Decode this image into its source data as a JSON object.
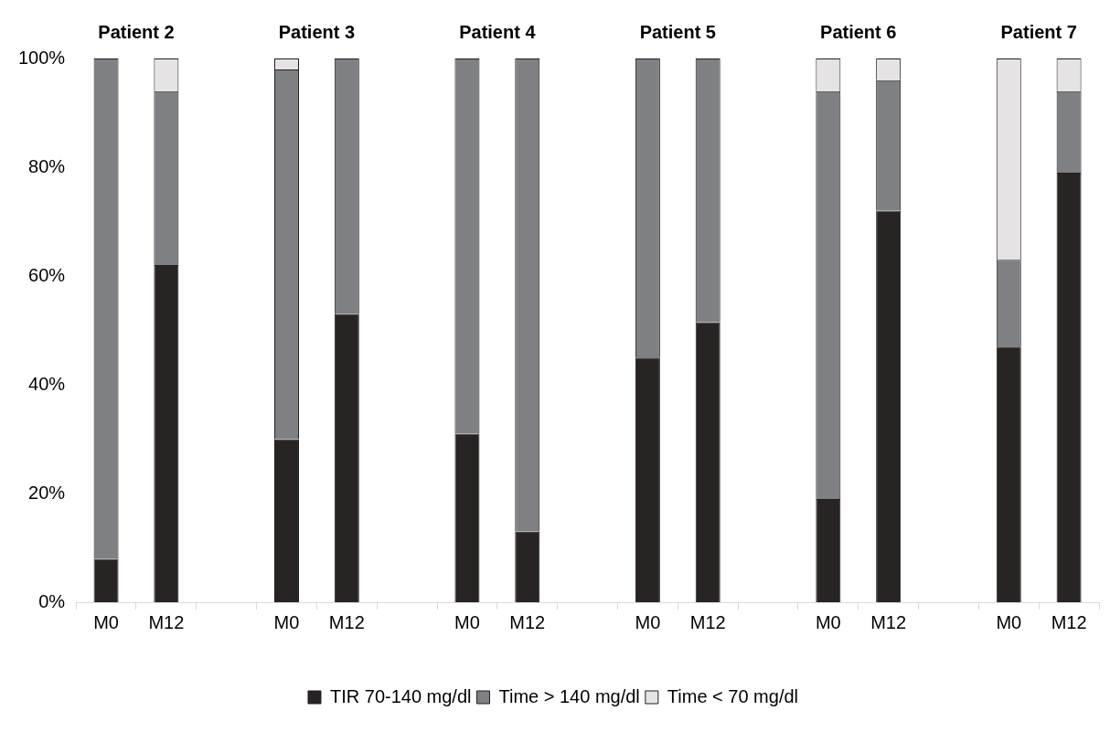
{
  "chart_data": {
    "type": "bar",
    "stacked": true,
    "categories": [
      "M0",
      "M12",
      null,
      "M0",
      "M12",
      null,
      "M0",
      "M12",
      null,
      "M0",
      "M12",
      null,
      "M0",
      "M12",
      null,
      "M0",
      "M12"
    ],
    "series": [
      {
        "name": "TIR 70-140 mg/dl",
        "color": "#282423",
        "values": [
          8,
          62,
          null,
          30,
          53,
          null,
          31,
          13,
          null,
          45,
          51.5,
          null,
          19,
          72,
          null,
          47,
          79
        ]
      },
      {
        "name": "Time > 140 mg/dl",
        "color": "#7f8083",
        "values": [
          92,
          32,
          null,
          68,
          47,
          null,
          69,
          87,
          null,
          55,
          48.5,
          null,
          75,
          24,
          null,
          16,
          15
        ]
      },
      {
        "name": "Time < 70 mg/dl",
        "color": "#e5e3e4",
        "values": [
          0,
          6,
          null,
          2,
          0,
          null,
          0,
          0,
          null,
          0,
          0,
          null,
          6,
          4,
          null,
          37,
          6
        ]
      }
    ],
    "ylim": [
      0,
      100
    ],
    "yticks": [
      {
        "value": 0,
        "label": "0%"
      },
      {
        "value": 20,
        "label": "20%"
      },
      {
        "value": 40,
        "label": "40%"
      },
      {
        "value": 60,
        "label": "60%"
      },
      {
        "value": 80,
        "label": "80%"
      },
      {
        "value": 100,
        "label": "100%"
      }
    ],
    "grid": false,
    "legend": "bottom",
    "annotations": [
      "Patient 2",
      "Patient 3",
      "Patient 4",
      "Patient 5",
      "Patient 6",
      "Patient 7"
    ]
  }
}
